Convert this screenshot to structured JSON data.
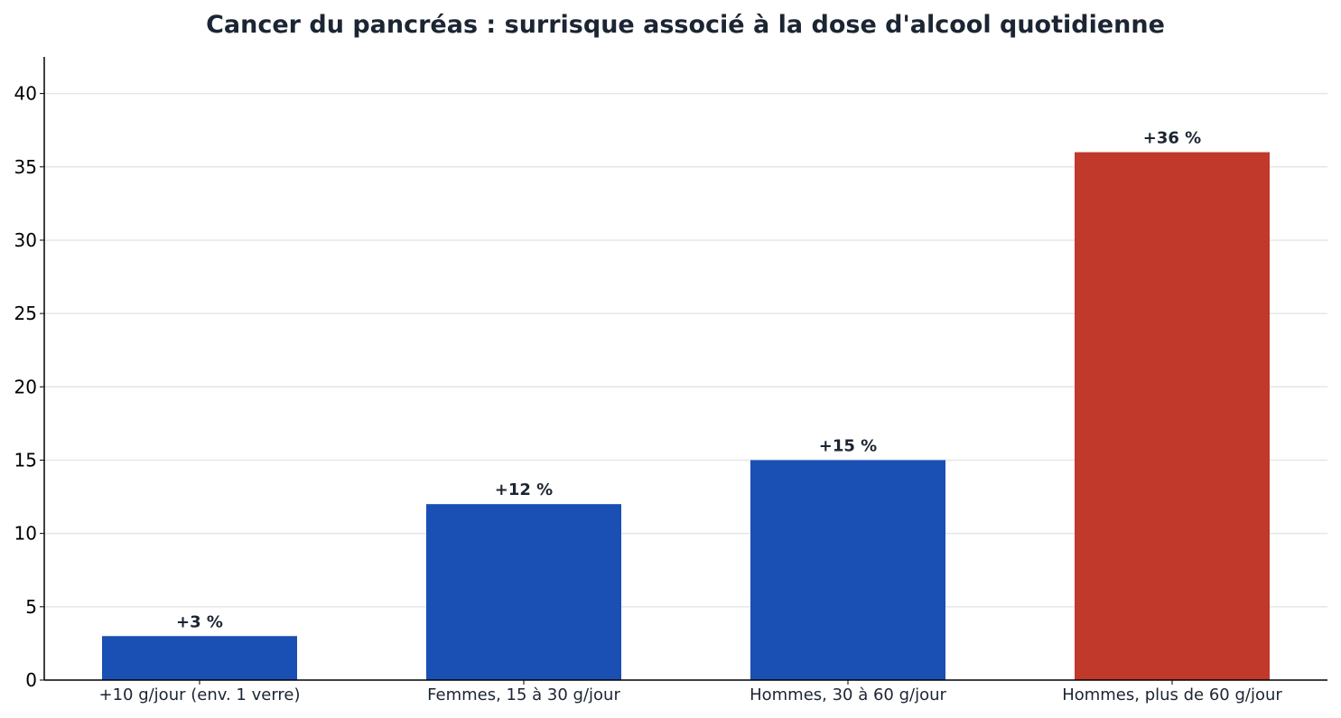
{
  "chart_data": {
    "type": "bar",
    "title": "Cancer du pancréas : surrisque associé à la dose d'alcool quotidienne",
    "xlabel": "",
    "ylabel": "",
    "categories": [
      "+10 g/jour (env. 1 verre)",
      "Femmes, 15 à 30 g/jour",
      "Hommes, 30 à 60 g/jour",
      "Hommes, plus de 60 g/jour"
    ],
    "values": [
      3,
      12,
      15,
      36
    ],
    "data_labels": [
      "+3 %",
      "+12 %",
      "+15 %",
      "+36 %"
    ],
    "bar_colors": [
      "#1a4fb3",
      "#1a4fb3",
      "#1a4fb3",
      "#c0392b"
    ],
    "ylim": [
      0,
      42.5
    ],
    "yticks": [
      0,
      5,
      10,
      15,
      20,
      25,
      30,
      35,
      40
    ],
    "grid": "horizontal",
    "legend": "none"
  }
}
